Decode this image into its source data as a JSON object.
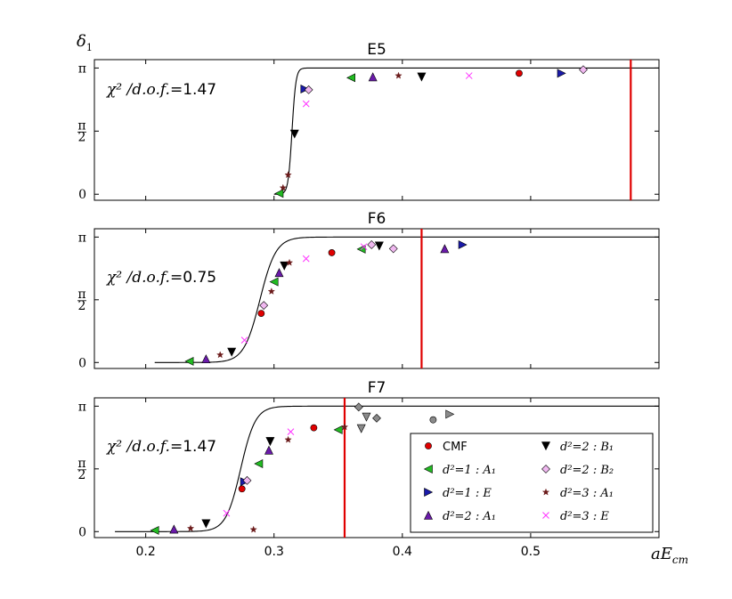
{
  "figure": {
    "ylabel": "δ1",
    "xlabel": "aE_cm",
    "xlim": [
      0.16,
      0.6
    ],
    "xticks": [
      "0.2",
      "0.3",
      "0.4",
      "0.5"
    ],
    "yticks": [
      "0",
      "π/2",
      "π"
    ]
  },
  "legend": {
    "placement": "inside-lower-right of F7 panel",
    "entries": [
      {
        "label": "CMF",
        "marker": "circle",
        "color": "#e00000"
      },
      {
        "label": "d²=2 : B₁",
        "marker": "triangle-down",
        "color": "#000000"
      },
      {
        "label": "d²=1 : A₁",
        "marker": "triangle-left",
        "color": "#22bb22"
      },
      {
        "label": "d²=2 : B₂",
        "marker": "diamond",
        "color": "#f0b8f0"
      },
      {
        "label": "d²=1 : E",
        "marker": "triangle-right",
        "color": "#1a1aaa"
      },
      {
        "label": "d²=3 : A₁",
        "marker": "star",
        "color": "#6b1a1a"
      },
      {
        "label": "d²=2 : A₁",
        "marker": "triangle-up",
        "color": "#6a1aaa"
      },
      {
        "label": "d²=3 : E",
        "marker": "x",
        "color": "#ff33ff"
      }
    ]
  },
  "chart_data": [
    {
      "type": "scatter",
      "title": "E5",
      "annotation": "χ² /d.o.f. = 1.47",
      "ylim": [
        -0.15,
        3.35
      ],
      "threshold_line_x": 0.578,
      "fit_curve": {
        "x0": 0.314,
        "width": 0.003,
        "x_start": 0.3,
        "x_end": 0.6
      },
      "points": [
        {
          "series": "d²=1 : A₁",
          "x": 0.304,
          "y": 0.02
        },
        {
          "series": "d²=3 : A₁",
          "x": 0.307,
          "y": 0.16
        },
        {
          "series": "d²=3 : A₁",
          "x": 0.311,
          "y": 0.48
        },
        {
          "series": "d²=2 : B₁",
          "x": 0.316,
          "y": 1.5
        },
        {
          "series": "d²=3 : E",
          "x": 0.325,
          "y": 2.25
        },
        {
          "series": "d²=1 : E",
          "x": 0.324,
          "y": 2.62
        },
        {
          "series": "d²=2 : B₂",
          "x": 0.327,
          "y": 2.6
        },
        {
          "series": "d²=1 : A₁",
          "x": 0.36,
          "y": 2.9
        },
        {
          "series": "d²=2 : A₁",
          "x": 0.377,
          "y": 2.92
        },
        {
          "series": "d²=3 : A₁",
          "x": 0.397,
          "y": 2.95
        },
        {
          "series": "d²=2 : B₁",
          "x": 0.415,
          "y": 2.92
        },
        {
          "series": "d²=3 : E",
          "x": 0.452,
          "y": 2.95
        },
        {
          "series": "CMF",
          "x": 0.491,
          "y": 3.01
        },
        {
          "series": "d²=1 : E",
          "x": 0.524,
          "y": 3.01
        },
        {
          "series": "d²=2 : B₂",
          "x": 0.541,
          "y": 3.1
        }
      ]
    },
    {
      "type": "scatter",
      "title": "F6",
      "annotation": "χ² /d.o.f. = 0.75",
      "ylim": [
        -0.15,
        3.35
      ],
      "threshold_line_x": 0.415,
      "fit_curve": {
        "x0": 0.289,
        "width": 0.0125,
        "x_start": 0.207,
        "x_end": 0.6
      },
      "points": [
        {
          "series": "d²=1 : A₁",
          "x": 0.234,
          "y": 0.03
        },
        {
          "series": "d²=2 : A₁",
          "x": 0.247,
          "y": 0.09
        },
        {
          "series": "d²=3 : A₁",
          "x": 0.258,
          "y": 0.19
        },
        {
          "series": "d²=2 : B₁",
          "x": 0.267,
          "y": 0.26
        },
        {
          "series": "d²=3 : E",
          "x": 0.277,
          "y": 0.56
        },
        {
          "series": "CMF",
          "x": 0.29,
          "y": 1.23
        },
        {
          "series": "d²=2 : B₂",
          "x": 0.292,
          "y": 1.43
        },
        {
          "series": "d²=3 : A₁",
          "x": 0.298,
          "y": 1.78
        },
        {
          "series": "d²=1 : A₁",
          "x": 0.3,
          "y": 2.02
        },
        {
          "series": "d²=2 : A₁",
          "x": 0.304,
          "y": 2.25
        },
        {
          "series": "d²=2 : B₁",
          "x": 0.308,
          "y": 2.42
        },
        {
          "series": "d²=3 : A₁",
          "x": 0.312,
          "y": 2.5
        },
        {
          "series": "d²=3 : E",
          "x": 0.325,
          "y": 2.6
        },
        {
          "series": "CMF",
          "x": 0.345,
          "y": 2.75
        },
        {
          "series": "d²=1 : A₁",
          "x": 0.368,
          "y": 2.84
        },
        {
          "series": "d²=3 : E",
          "x": 0.37,
          "y": 2.9
        },
        {
          "series": "d²=2 : B₂",
          "x": 0.376,
          "y": 2.95
        },
        {
          "series": "d²=2 : B₂",
          "x": 0.393,
          "y": 2.85
        },
        {
          "series": "d²=2 : B₁",
          "x": 0.382,
          "y": 2.92
        },
        {
          "series": "d²=2 : A₁",
          "x": 0.433,
          "y": 2.85
        },
        {
          "series": "d²=1 : E",
          "x": 0.447,
          "y": 2.95
        }
      ]
    },
    {
      "type": "scatter",
      "title": "F7",
      "annotation": "χ² /d.o.f. = 1.47",
      "ylim": [
        -0.15,
        3.35
      ],
      "threshold_line_x": 0.355,
      "fit_curve": {
        "x0": 0.274,
        "width": 0.0115,
        "x_start": 0.176,
        "x_end": 0.6
      },
      "points": [
        {
          "series": "d²=1 : A₁",
          "x": 0.207,
          "y": 0.03
        },
        {
          "series": "d²=2 : A₁",
          "x": 0.222,
          "y": 0.06
        },
        {
          "series": "d²=3 : A₁",
          "x": 0.235,
          "y": 0.08
        },
        {
          "series": "d²=2 : B₁",
          "x": 0.247,
          "y": 0.2
        },
        {
          "series": "d²=3 : E",
          "x": 0.263,
          "y": 0.46
        },
        {
          "series": "CMF",
          "x": 0.275,
          "y": 1.07
        },
        {
          "series": "d²=1 : E",
          "x": 0.277,
          "y": 1.25
        },
        {
          "series": "d²=2 : B₂",
          "x": 0.279,
          "y": 1.28
        },
        {
          "series": "d²=3 : A₁",
          "x": 0.284,
          "y": 0.05
        },
        {
          "series": "d²=1 : A₁",
          "x": 0.288,
          "y": 1.7
        },
        {
          "series": "d²=2 : A₁",
          "x": 0.296,
          "y": 2.04
        },
        {
          "series": "d²=2 : B₁",
          "x": 0.297,
          "y": 2.26
        },
        {
          "series": "d²=3 : A₁",
          "x": 0.311,
          "y": 2.3
        },
        {
          "series": "d²=3 : E",
          "x": 0.313,
          "y": 2.5
        },
        {
          "series": "CMF",
          "x": 0.331,
          "y": 2.6
        },
        {
          "series": "d²=1 : A₁",
          "x": 0.35,
          "y": 2.55
        },
        {
          "series": "d²=3 : A₁",
          "x": 0.355,
          "y": 2.62
        }
      ],
      "grey_points": [
        {
          "marker": "diamond",
          "x": 0.366,
          "y": 3.12
        },
        {
          "marker": "triangle-down",
          "x": 0.368,
          "y": 2.58
        },
        {
          "marker": "triangle-down",
          "x": 0.372,
          "y": 2.87
        },
        {
          "marker": "diamond",
          "x": 0.38,
          "y": 2.84
        },
        {
          "marker": "circle",
          "x": 0.424,
          "y": 2.8
        },
        {
          "marker": "triangle-right",
          "x": 0.437,
          "y": 2.94
        }
      ]
    }
  ]
}
